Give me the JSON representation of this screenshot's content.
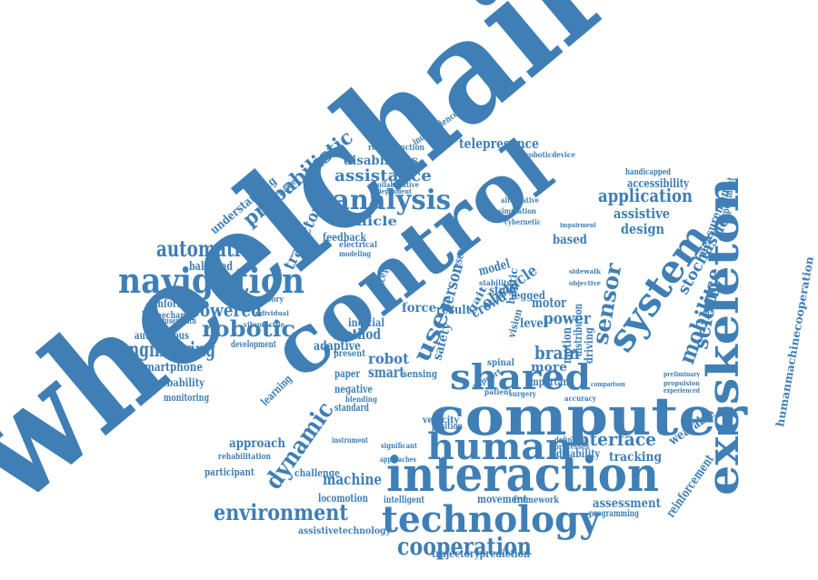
{
  "colors": {
    "word": "#3f7fb5",
    "background": "#ffffff"
  },
  "words": [
    "wheelchair",
    "control",
    "computer",
    "interaction",
    "exoskeleton",
    "technology",
    "navigation",
    "human",
    "shared",
    "system",
    "analysis",
    "cooperation",
    "environment",
    "dynamic",
    "mobility",
    "sensor",
    "science",
    "robotic",
    "automation",
    "engineering",
    "probabilistic",
    "application",
    "assistance",
    "interface",
    "trajectory",
    "user",
    "machine",
    "powered",
    "design",
    "assistive",
    "stochastic",
    "power",
    "measurement",
    "crowd",
    "obstacle",
    "person",
    "robot",
    "brain",
    "smart",
    "method",
    "adaptive",
    "force",
    "result",
    "model",
    "motor",
    "level",
    "assessment",
    "tracking",
    "wearable",
    "reinforcement",
    "telepresence",
    "accessibility",
    "based",
    "experiment",
    "humanmachinecooperation",
    "vehicle",
    "disabilities",
    "feedback",
    "balanced",
    "information",
    "biomechanics",
    "autonomous",
    "smartphone",
    "probability",
    "monitoring",
    "approach",
    "rehabilitation",
    "participant",
    "challenge",
    "locomotion",
    "intelligent",
    "movement",
    "framework",
    "programming",
    "assistivetechnology",
    "trajectoryprediction",
    "understanding",
    "performance",
    "reconstruction",
    "independence",
    "roboticdevice",
    "handicapped",
    "development",
    "supervisory",
    "enduserswith",
    "learning",
    "negative",
    "standard",
    "paper",
    "sensing",
    "velocity",
    "position",
    "inertial",
    "safety",
    "gait",
    "research",
    "study",
    "distribution",
    "motion",
    "driving",
    "more",
    "important",
    "disability",
    "definition",
    "processes",
    "instrument",
    "significant",
    "collaborative",
    "electrical",
    "modeling",
    "individual",
    "vibrotactile",
    "haptic",
    "legged",
    "spinal",
    "support",
    "patient",
    "surgery",
    "accuracy",
    "simulation",
    "cybernetic",
    "alternative",
    "impairment",
    "sidewalk",
    "objective",
    "propulsion",
    "preliminary",
    "experienced",
    "approaches",
    "classification",
    "independent",
    "concept",
    "present",
    "blending",
    "stability",
    "environment",
    "vision",
    "comparison"
  ]
}
